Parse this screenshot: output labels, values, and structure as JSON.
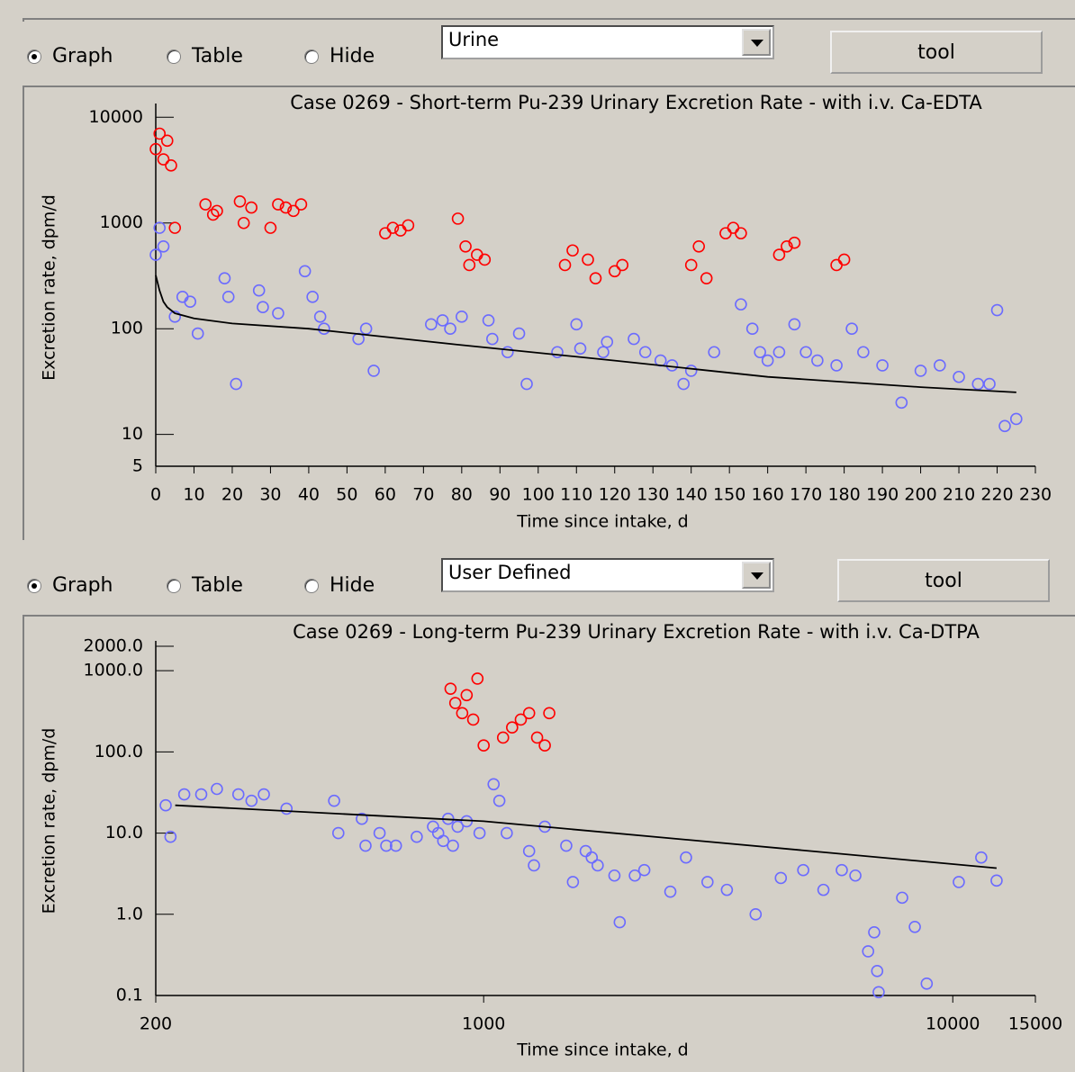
{
  "ui": {
    "panels": [
      {
        "radios": [
          "Graph",
          "Table",
          "Hide"
        ],
        "selected": 0,
        "dropdown": "Urine",
        "button": "tool"
      },
      {
        "radios": [
          "Graph",
          "Table",
          "Hide"
        ],
        "selected": 0,
        "dropdown": "User Defined",
        "button": "tool"
      }
    ]
  },
  "chart_data": [
    {
      "type": "scatter",
      "title": "Case 0269 - Short-term Pu-239 Urinary Excretion Rate - with i.v. Ca-EDTA",
      "x_label": "Time since intake, d",
      "y_label": "Excretion rate, dpm/d",
      "x_scale": "linear",
      "y_scale": "log",
      "xlim": [
        0,
        230
      ],
      "xticks": [
        0,
        10,
        20,
        30,
        40,
        50,
        60,
        70,
        80,
        90,
        100,
        110,
        120,
        130,
        140,
        150,
        160,
        170,
        180,
        190,
        200,
        210,
        220,
        230
      ],
      "ylim": [
        5,
        12000
      ],
      "yticks": [
        5,
        10,
        100,
        1000,
        10000
      ],
      "series": [
        {
          "color": "#6b6bff",
          "marker": "circle",
          "x": [
            0,
            1,
            2,
            5,
            7,
            9,
            11,
            18,
            19,
            21,
            27,
            28,
            32,
            39,
            41,
            43,
            44,
            53,
            55,
            57,
            72,
            75,
            77,
            80,
            87,
            88,
            92,
            95,
            97,
            105,
            110,
            111,
            117,
            118,
            125,
            128,
            132,
            135,
            138,
            140,
            146,
            153,
            156,
            158,
            160,
            163,
            167,
            170,
            173,
            178,
            182,
            185,
            190,
            195,
            200,
            205,
            210,
            215,
            218,
            220,
            222,
            225
          ],
          "values": [
            500,
            900,
            600,
            130,
            200,
            180,
            90,
            300,
            200,
            30,
            230,
            160,
            140,
            350,
            200,
            130,
            100,
            80,
            100,
            40,
            110,
            120,
            100,
            130,
            120,
            80,
            60,
            90,
            30,
            60,
            110,
            65,
            60,
            75,
            80,
            60,
            50,
            45,
            30,
            40,
            60,
            170,
            100,
            60,
            50,
            60,
            110,
            60,
            50,
            45,
            100,
            60,
            45,
            20,
            40,
            45,
            35,
            30,
            30,
            150,
            12,
            14
          ]
        },
        {
          "color": "#ff0000",
          "marker": "circle",
          "x": [
            0,
            1,
            2,
            3,
            4,
            5,
            13,
            15,
            16,
            22,
            23,
            25,
            30,
            32,
            34,
            36,
            38,
            60,
            62,
            64,
            66,
            79,
            81,
            82,
            84,
            86,
            107,
            109,
            113,
            115,
            120,
            122,
            140,
            142,
            144,
            149,
            151,
            153,
            163,
            165,
            167,
            178,
            180
          ],
          "values": [
            5000,
            7000,
            4000,
            6000,
            3500,
            900,
            1500,
            1200,
            1300,
            1600,
            1000,
            1400,
            900,
            1500,
            1400,
            1300,
            1500,
            800,
            900,
            850,
            950,
            1100,
            600,
            400,
            500,
            450,
            400,
            550,
            450,
            300,
            350,
            400,
            400,
            600,
            300,
            800,
            900,
            800,
            500,
            600,
            650,
            400,
            450
          ]
        },
        {
          "color": "#000000",
          "marker": "line",
          "x": [
            0,
            1,
            2,
            3,
            5,
            10,
            20,
            40,
            80,
            120,
            160,
            200,
            225
          ],
          "values": [
            320,
            230,
            180,
            160,
            140,
            125,
            112,
            100,
            70,
            50,
            35,
            28,
            25
          ]
        }
      ]
    },
    {
      "type": "scatter",
      "title": "Case 0269 - Long-term Pu-239 Urinary Excretion Rate - with i.v. Ca-DTPA",
      "x_label": "Time since intake, d",
      "y_label": "Excretion rate, dpm/d",
      "x_scale": "log",
      "y_scale": "log",
      "xlim": [
        200,
        15000
      ],
      "xticks": [
        200,
        1000,
        10000,
        15000
      ],
      "ylim": [
        0.1,
        2000
      ],
      "yticks": [
        0.1,
        {
          "value": 1,
          "label": "1.0"
        },
        {
          "value": 10,
          "label": "10.0"
        },
        {
          "value": 100,
          "label": "100.0"
        },
        {
          "value": 1000,
          "label": "1000.0"
        },
        {
          "value": 2000,
          "label": "2000.0"
        }
      ],
      "series": [
        {
          "color": "#6b6bff",
          "marker": "circle",
          "x": [
            210,
            215,
            230,
            250,
            270,
            300,
            320,
            340,
            380,
            480,
            490,
            550,
            560,
            600,
            620,
            650,
            720,
            780,
            800,
            820,
            840,
            860,
            880,
            920,
            980,
            1050,
            1080,
            1120,
            1250,
            1280,
            1350,
            1500,
            1550,
            1650,
            1700,
            1750,
            1900,
            1950,
            2100,
            2200,
            2500,
            2700,
            3000,
            3300,
            3800,
            4300,
            4800,
            5300,
            5800,
            6200,
            6600,
            6800,
            6900,
            6950,
            7800,
            8300,
            8800,
            10300,
            11500,
            12400
          ],
          "values": [
            22,
            9,
            30,
            30,
            35,
            30,
            25,
            30,
            20,
            25,
            10,
            15,
            7,
            10,
            7,
            7,
            9,
            12,
            10,
            8,
            15,
            7,
            12,
            14,
            10,
            40,
            25,
            10,
            6,
            4,
            12,
            7,
            2.5,
            6,
            5,
            4,
            3,
            0.8,
            3,
            3.5,
            1.9,
            5,
            2.5,
            2,
            1,
            2.8,
            3.5,
            2,
            3.5,
            3,
            0.35,
            0.6,
            0.2,
            0.11,
            1.6,
            0.7,
            0.14,
            2.5,
            5,
            2.6
          ]
        },
        {
          "color": "#ff0000",
          "marker": "circle",
          "x": [
            850,
            870,
            900,
            920,
            950,
            970,
            1000,
            1100,
            1150,
            1200,
            1250,
            1300,
            1350,
            1380
          ],
          "values": [
            600,
            400,
            300,
            500,
            250,
            800,
            120,
            150,
            200,
            250,
            300,
            150,
            120,
            300
          ]
        },
        {
          "color": "#000000",
          "marker": "line",
          "x": [
            220,
            1000,
            5000,
            12400
          ],
          "values": [
            22,
            14,
            6,
            3.7
          ]
        }
      ]
    }
  ]
}
